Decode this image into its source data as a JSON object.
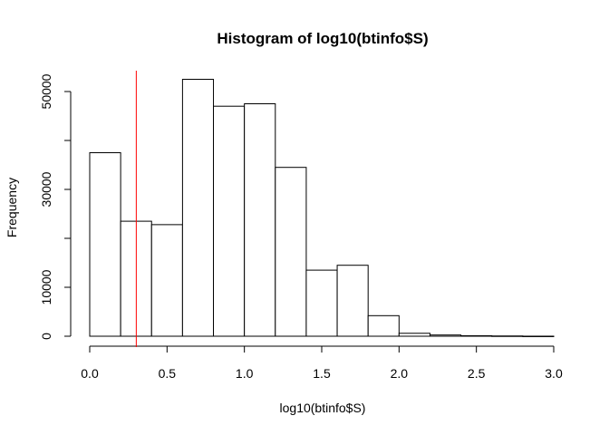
{
  "chart_data": {
    "type": "bar",
    "title": "Histogram of log10(btinfo$S)",
    "xlabel": "log10(btinfo$S)",
    "ylabel": "Frequency",
    "xlim": [
      0,
      3
    ],
    "ylim": [
      0,
      55000
    ],
    "bin_width": 0.2,
    "bins": [
      {
        "start": 0.0,
        "end": 0.2,
        "count": 37500
      },
      {
        "start": 0.2,
        "end": 0.4,
        "count": 23500
      },
      {
        "start": 0.4,
        "end": 0.6,
        "count": 22800
      },
      {
        "start": 0.6,
        "end": 0.8,
        "count": 52500
      },
      {
        "start": 0.8,
        "end": 1.0,
        "count": 47000
      },
      {
        "start": 1.0,
        "end": 1.2,
        "count": 47500
      },
      {
        "start": 1.2,
        "end": 1.4,
        "count": 34500
      },
      {
        "start": 1.4,
        "end": 1.6,
        "count": 13500
      },
      {
        "start": 1.6,
        "end": 1.8,
        "count": 14500
      },
      {
        "start": 1.8,
        "end": 2.0,
        "count": 4200
      },
      {
        "start": 2.0,
        "end": 2.2,
        "count": 600
      },
      {
        "start": 2.2,
        "end": 2.4,
        "count": 250
      },
      {
        "start": 2.4,
        "end": 2.6,
        "count": 100
      },
      {
        "start": 2.6,
        "end": 2.8,
        "count": 50
      },
      {
        "start": 2.8,
        "end": 3.0,
        "count": 10
      }
    ],
    "x_ticks": [
      {
        "value": 0.0,
        "label": "0.0"
      },
      {
        "value": 0.5,
        "label": "0.5"
      },
      {
        "value": 1.0,
        "label": "1.0"
      },
      {
        "value": 1.5,
        "label": "1.5"
      },
      {
        "value": 2.0,
        "label": "2.0"
      },
      {
        "value": 2.5,
        "label": "2.5"
      },
      {
        "value": 3.0,
        "label": "3.0"
      }
    ],
    "y_ticks": [
      {
        "value": 0,
        "label": "0"
      },
      {
        "value": 10000,
        "label": "10000"
      },
      {
        "value": 30000,
        "label": "30000"
      },
      {
        "value": 50000,
        "label": "50000"
      }
    ],
    "y_minor_ticks": [
      20000,
      40000
    ],
    "reference_line": {
      "x": 0.301,
      "color": "#ff0000"
    },
    "bar_fill": "#ffffff",
    "bar_stroke": "#000000",
    "grid": false,
    "legend": "none"
  }
}
